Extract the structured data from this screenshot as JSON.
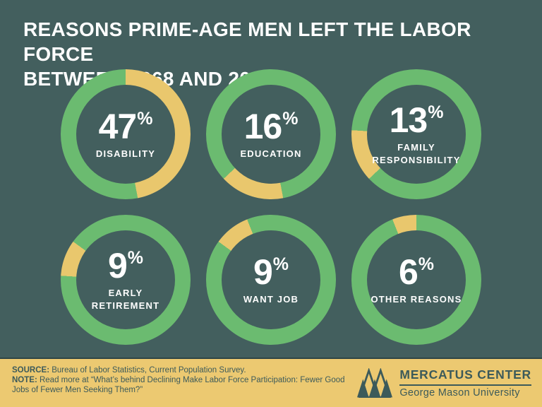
{
  "title": {
    "lines": [
      "REASONS PRIME-AGE MEN LEFT THE LABOR FORCE",
      "BETWEEN 1968 AND 2014"
    ]
  },
  "chart_data": {
    "type": "pie",
    "variant": "six-donut-multiples",
    "title": "Reasons prime-age men left the labor force between 1968 and 2014",
    "unit": "%",
    "categories": [
      "DISABILITY",
      "EDUCATION",
      "FAMILY RESPONSIBILITY",
      "EARLY RETIREMENT",
      "WANT JOB",
      "OTHER REASONS"
    ],
    "values": [
      47,
      16,
      13,
      9,
      9,
      6
    ],
    "segments": [
      {
        "label": "DISABILITY",
        "value": 47
      },
      {
        "label": "EDUCATION",
        "value": 16
      },
      {
        "label": "FAMILY RESPONSIBILITY",
        "value": 13
      },
      {
        "label": "EARLY RETIREMENT",
        "value": 9
      },
      {
        "label": "WANT JOB",
        "value": 9
      },
      {
        "label": "OTHER REASONS",
        "value": 6
      }
    ],
    "layout": "3 columns x 2 rows of donut rings; each ring's yellow highlight arc starts clockwise where the previous donut's arc ended, so the six arcs cumulatively complete 360 degrees",
    "colors": {
      "highlight": "#e9c76d",
      "remainder": "#6bbb70",
      "hole": "#435f5e",
      "value_text": "#ffffff"
    }
  },
  "footer": {
    "source_label": "SOURCE:",
    "source_text": "Bureau of Labor Statistics, Current Population Survey.",
    "note_label": "NOTE:",
    "note_text": "Read more at “What’s behind Declining Make Labor Force Participation: Fewer Good Jobs of Fewer Men Seeking Them?”",
    "logo": {
      "title": "MERCATUS CENTER",
      "subtitle": "George Mason University"
    }
  },
  "colors": {
    "background": "#435f5e",
    "title_text": "#ffffff",
    "footer_background": "#ecc971",
    "footer_text": "#3c5a5a"
  }
}
